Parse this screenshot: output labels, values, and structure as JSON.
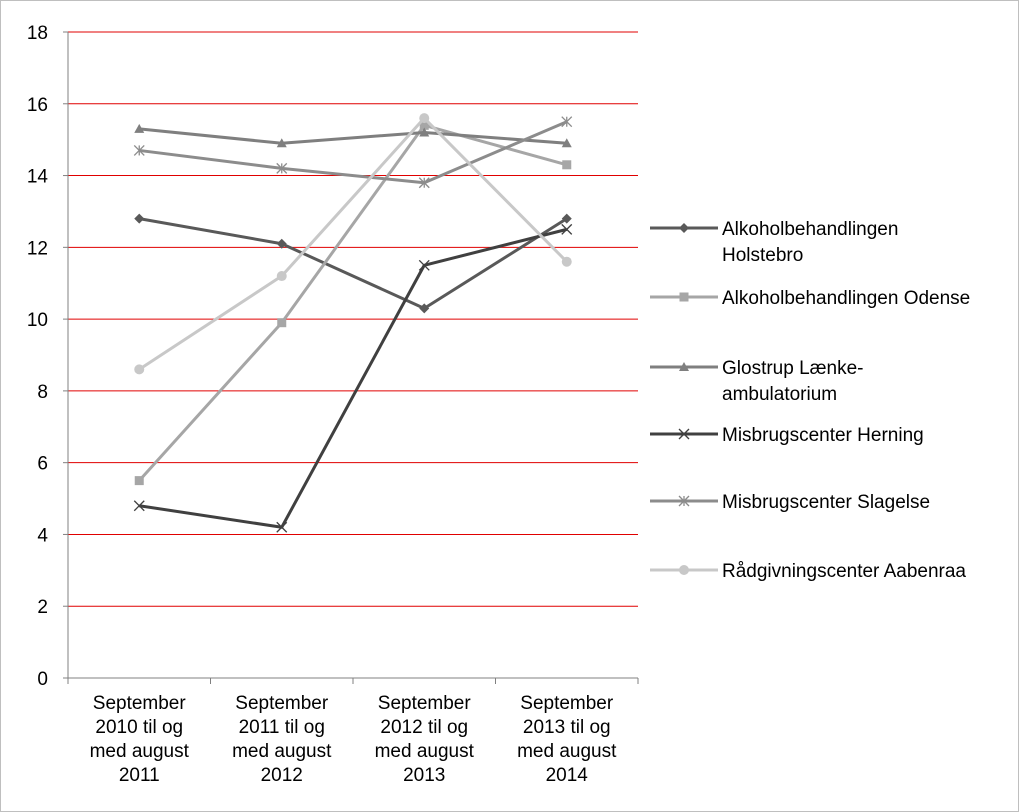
{
  "chart_data": {
    "type": "line",
    "categories": [
      [
        "September",
        "2010 til og",
        "med august",
        "2011"
      ],
      [
        "September",
        "2011 til og",
        "med august",
        "2012"
      ],
      [
        "September",
        "2012 til og",
        "med august",
        "2013"
      ],
      [
        "September",
        "2013 til og",
        "med august",
        "2014"
      ]
    ],
    "ylim": [
      0,
      18
    ],
    "yticks": [
      "0",
      "2",
      "4",
      "6",
      "8",
      "10",
      "12",
      "14",
      "16",
      "18"
    ],
    "ytick_values": [
      0,
      2,
      4,
      6,
      8,
      10,
      12,
      14,
      16,
      18
    ],
    "grid": true,
    "legend_position": "right",
    "series": [
      {
        "name": "Alkoholbehandlingen Holstebro",
        "legend_lines": [
          "Alkoholbehandlingen",
          "Holstebro"
        ],
        "values": [
          12.8,
          12.1,
          10.3,
          12.8
        ],
        "color": "#595959",
        "marker": "diamond"
      },
      {
        "name": "Alkoholbehandlingen Odense",
        "legend_lines": [
          "Alkoholbehandlingen Odense"
        ],
        "values": [
          5.5,
          9.9,
          15.4,
          14.3
        ],
        "color": "#a6a6a6",
        "marker": "square"
      },
      {
        "name": "Glostrup Lænke-ambulatorium",
        "legend_lines": [
          "Glostrup Lænke-",
          "ambulatorium"
        ],
        "values": [
          15.3,
          14.9,
          15.2,
          14.9
        ],
        "color": "#7f7f7f",
        "marker": "triangle"
      },
      {
        "name": "Misbrugscenter Herning",
        "legend_lines": [
          "Misbrugscenter Herning"
        ],
        "values": [
          4.8,
          4.2,
          11.5,
          12.5
        ],
        "color": "#404040",
        "marker": "x"
      },
      {
        "name": "Misbrugscenter Slagelse",
        "legend_lines": [
          "Misbrugscenter Slagelse"
        ],
        "values": [
          14.7,
          14.2,
          13.8,
          15.5
        ],
        "color": "#8c8c8c",
        "marker": "star"
      },
      {
        "name": "Rådgivningscenter Aabenraa",
        "legend_lines": [
          "Rådgivningscenter Aabenraa"
        ],
        "values": [
          8.6,
          11.2,
          15.6,
          11.6
        ],
        "color": "#c8c8c8",
        "marker": "circle"
      }
    ],
    "gridline_color": "#e00000",
    "axis_color": "#808080"
  }
}
